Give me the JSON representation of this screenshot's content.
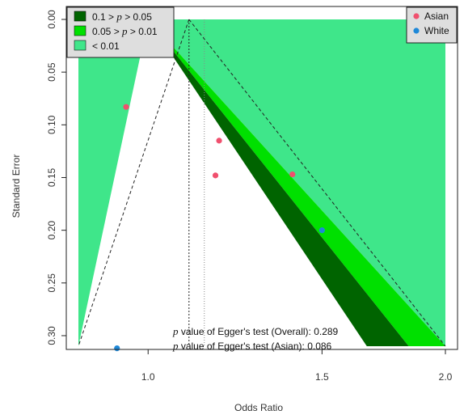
{
  "chart_data": {
    "type": "scatter",
    "subtype": "contour-enhanced funnel plot",
    "xlabel": "Odds Ratio",
    "ylabel": "Standard Error",
    "x_scale": "log",
    "y_reversed": true,
    "xlim": [
      0.85,
      2.0
    ],
    "ylim": [
      0.0,
      0.31
    ],
    "x_ticks": [
      1.0,
      1.5,
      2.0
    ],
    "x_tick_labels": [
      "1.0",
      "1.5",
      "2.0"
    ],
    "y_ticks": [
      0.0,
      0.05,
      0.1,
      0.15,
      0.2,
      0.25,
      0.3
    ],
    "y_tick_labels": [
      "0.00",
      "0.05",
      "0.10",
      "0.15",
      "0.20",
      "0.25",
      "0.30"
    ],
    "reference_line_or": 1.0,
    "pooled_or_fixed": 1.1,
    "pooled_or_random": 1.14,
    "contours": [
      {
        "pre": "0.1 > ",
        "p": "p",
        "post": " > 0.05",
        "z": 1.645,
        "color": "#006400"
      },
      {
        "pre": "0.05 > ",
        "p": "p",
        "post": " > 0.01",
        "z": 1.96,
        "color": "#00e000"
      },
      {
        "pre": "< 0.01",
        "p": "",
        "post": "",
        "z": 2.576,
        "color": "#3fe68a"
      }
    ],
    "legend_contours_position": "top-left",
    "legend_groups_position": "top-right",
    "series": [
      {
        "name": "Asian",
        "color": "#f0506e",
        "points": [
          {
            "x": 0.95,
            "y": 0.083
          },
          {
            "x": 1.18,
            "y": 0.115
          },
          {
            "x": 1.17,
            "y": 0.148
          },
          {
            "x": 1.4,
            "y": 0.147
          }
        ]
      },
      {
        "name": "White",
        "color": "#1e88d8",
        "points": [
          {
            "x": 1.5,
            "y": 0.2
          },
          {
            "x": 0.93,
            "y": 0.312
          }
        ]
      }
    ],
    "annotations": [
      {
        "p": "p",
        "text": " value of Egger's test (Overall): 0.289"
      },
      {
        "p": "p",
        "text": " value of Egger's test (Asian): 0.086"
      }
    ]
  }
}
